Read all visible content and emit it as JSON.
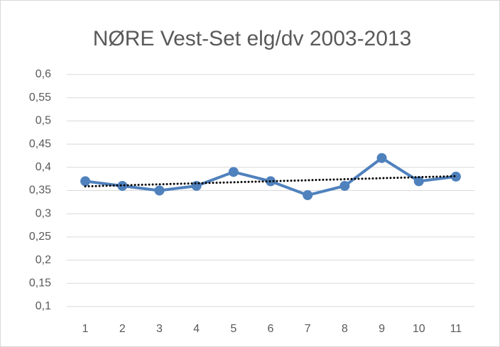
{
  "chart_data": {
    "type": "line",
    "title": "NØRE Vest-Set elg/dv 2003-2013",
    "categories": [
      "1",
      "2",
      "3",
      "4",
      "5",
      "6",
      "7",
      "8",
      "9",
      "10",
      "11"
    ],
    "series": [
      {
        "color": "#4f81bd",
        "values": [
          0.37,
          0.36,
          0.35,
          0.36,
          0.39,
          0.37,
          0.34,
          0.36,
          0.42,
          0.37,
          0.38
        ]
      }
    ],
    "trendline": {
      "color": "#000000",
      "values": [
        0.359,
        0.381
      ]
    },
    "ylim": [
      0.1,
      0.6
    ],
    "yticks": [
      {
        "value": 0.1,
        "label": "0,1"
      },
      {
        "value": 0.15,
        "label": "0,15"
      },
      {
        "value": 0.2,
        "label": "0,2"
      },
      {
        "value": 0.25,
        "label": "0,25"
      },
      {
        "value": 0.3,
        "label": "0,3"
      },
      {
        "value": 0.35,
        "label": "0,35"
      },
      {
        "value": 0.4,
        "label": "0,4"
      },
      {
        "value": 0.45,
        "label": "0,45"
      },
      {
        "value": 0.5,
        "label": "0,5"
      },
      {
        "value": 0.55,
        "label": "0,55"
      },
      {
        "value": 0.6,
        "label": "0,6"
      }
    ],
    "grid": true
  }
}
